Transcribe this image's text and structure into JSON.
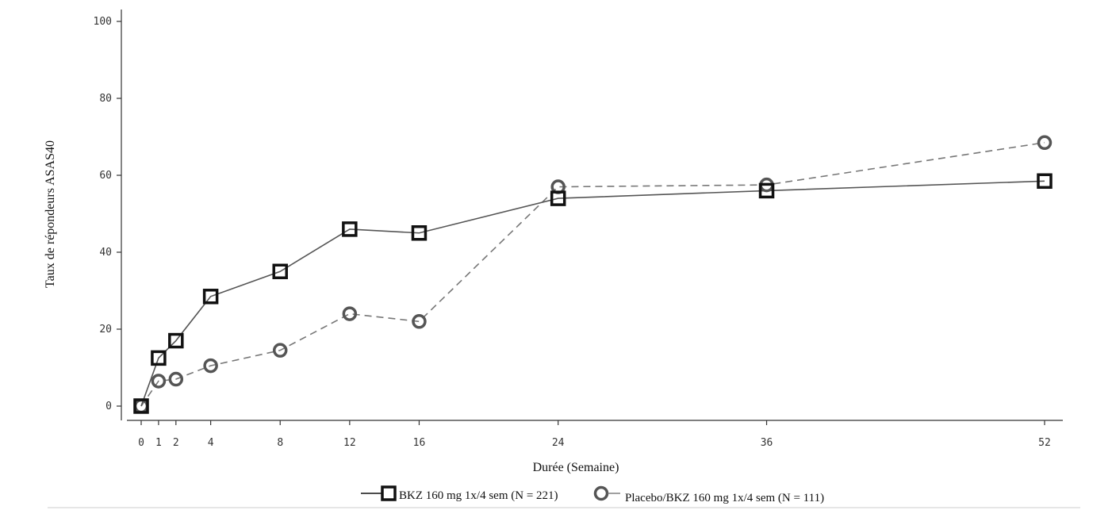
{
  "chart_data": {
    "type": "line",
    "xlabel": "Durée (Semaine)",
    "ylabel": "Taux de répondeurs ASAS40",
    "ylim": [
      0,
      100
    ],
    "y_ticks": [
      0,
      20,
      40,
      60,
      80,
      100
    ],
    "x_ticks": [
      0,
      1,
      2,
      4,
      8,
      12,
      16,
      24,
      36,
      52
    ],
    "xlim": [
      0,
      52
    ],
    "grid": false,
    "legend_position": "bottom",
    "series": [
      {
        "name": "BKZ 160 mg 1x/4 sem (N = 221)",
        "marker": "square",
        "line_style": "solid",
        "color": "#555555",
        "marker_color": "#111111",
        "x": [
          0,
          1,
          2,
          4,
          8,
          12,
          16,
          24,
          36,
          52
        ],
        "values": [
          0,
          12.5,
          17,
          28.5,
          35,
          46,
          45,
          54,
          56,
          58.5
        ]
      },
      {
        "name": "Placebo/BKZ 160 mg 1x/4 sem (N = 111)",
        "marker": "circle",
        "line_style": "dashed",
        "color": "#777777",
        "marker_color": "#555555",
        "x": [
          0,
          1,
          2,
          4,
          8,
          12,
          16,
          24,
          36,
          52
        ],
        "values": [
          0,
          6.5,
          7,
          10.5,
          14.5,
          24,
          22,
          57,
          57.5,
          68.5
        ]
      }
    ]
  }
}
